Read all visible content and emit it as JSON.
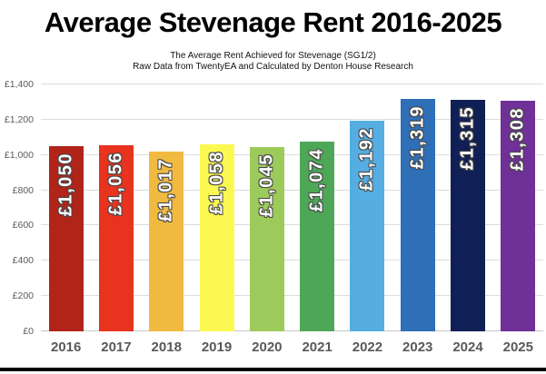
{
  "title": "Average Stevenage Rent 2016-2025",
  "subtitle_line1": "The Average Rent Achieved for Stevenage (SG1/2)",
  "subtitle_line2": "Raw Data from TwentyEA and Calculated by Denton House Research",
  "chart_data": {
    "type": "bar",
    "title": "Average Stevenage Rent 2016-2025",
    "subtitle": "The Average Rent Achieved for Stevenage (SG1/2) — Raw Data from TwentyEA and Calculated by Denton House Research",
    "categories": [
      "2016",
      "2017",
      "2018",
      "2019",
      "2020",
      "2021",
      "2022",
      "2023",
      "2024",
      "2025"
    ],
    "values": [
      1050,
      1056,
      1017,
      1058,
      1045,
      1074,
      1192,
      1319,
      1315,
      1308
    ],
    "data_labels": [
      "£1,050",
      "£1,056",
      "£1,017",
      "£1,058",
      "£1,045",
      "£1,074",
      "£1,192",
      "£1,319",
      "£1,315",
      "£1,308"
    ],
    "bar_colors": [
      "#B0241A",
      "#E8331F",
      "#F0BA40",
      "#FBF951",
      "#9DCB5B",
      "#4EA757",
      "#55ADE2",
      "#2E6FB7",
      "#101F55",
      "#6F3197"
    ],
    "xlabel": "",
    "ylabel": "",
    "ylim": [
      0,
      1400
    ],
    "y_ticks": [
      {
        "value": 0,
        "label": "£0"
      },
      {
        "value": 200,
        "label": "£200"
      },
      {
        "value": 400,
        "label": "£400"
      },
      {
        "value": 600,
        "label": "£600"
      },
      {
        "value": 800,
        "label": "£800"
      },
      {
        "value": 1000,
        "label": "£1,000"
      },
      {
        "value": 1200,
        "label": "£1,200"
      },
      {
        "value": 1400,
        "label": "£1,400"
      }
    ],
    "grid": true,
    "legend": "none",
    "data_label_style": "white bold, rotated vertical, dark outline, anchored near bar top"
  },
  "colors": {
    "background": "#FFFFFF",
    "grid": "#DCDCDC",
    "axis_text": "#595959",
    "title_text": "#000000",
    "data_label_text": "#FFFFFF",
    "data_label_outline": "#474747",
    "bottom_rule": "#000000"
  }
}
